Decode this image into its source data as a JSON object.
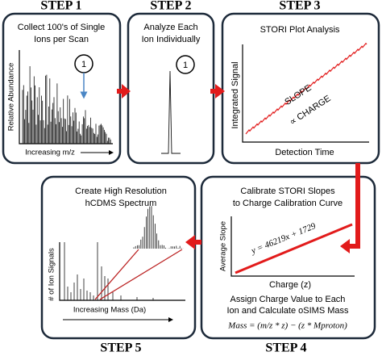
{
  "step1": {
    "label": "STEP 1",
    "title": [
      "Collect 100's of Single",
      "Ions per Scan"
    ],
    "y_axis": "Relative Abundance",
    "x_axis": "Increasing m/z",
    "marker": "1"
  },
  "step2": {
    "label": "STEP 2",
    "title": [
      "Analyze Each",
      "Ion Individually"
    ],
    "marker": "1"
  },
  "step3": {
    "label": "STEP 3",
    "title": [
      "STORI Plot Analysis"
    ],
    "y_axis": "Integrated Signal",
    "slope_text": [
      "SLOPE",
      "∝ CHARGE"
    ],
    "x_axis": "Detection Time"
  },
  "step4": {
    "label": "STEP 4",
    "title": [
      "Calibrate STORI Slopes",
      "to Charge Calibration Curve"
    ],
    "y_axis": "Average Slope",
    "equation": "y = 46219x + 1729",
    "x_axis": "Charge (z)",
    "footer": [
      "Assign Charge Value to Each",
      "Ion and Calculate oSIMS Mass"
    ],
    "formula": "Mass = (m/z * z) − (z * Mproton)"
  },
  "step5": {
    "label": "STEP 5",
    "title": [
      "Create High Resolution",
      "hCDMS Spectrum"
    ],
    "y_axis": "# of Ion Signals",
    "x_axis": "Increasing Mass (Da)"
  }
}
